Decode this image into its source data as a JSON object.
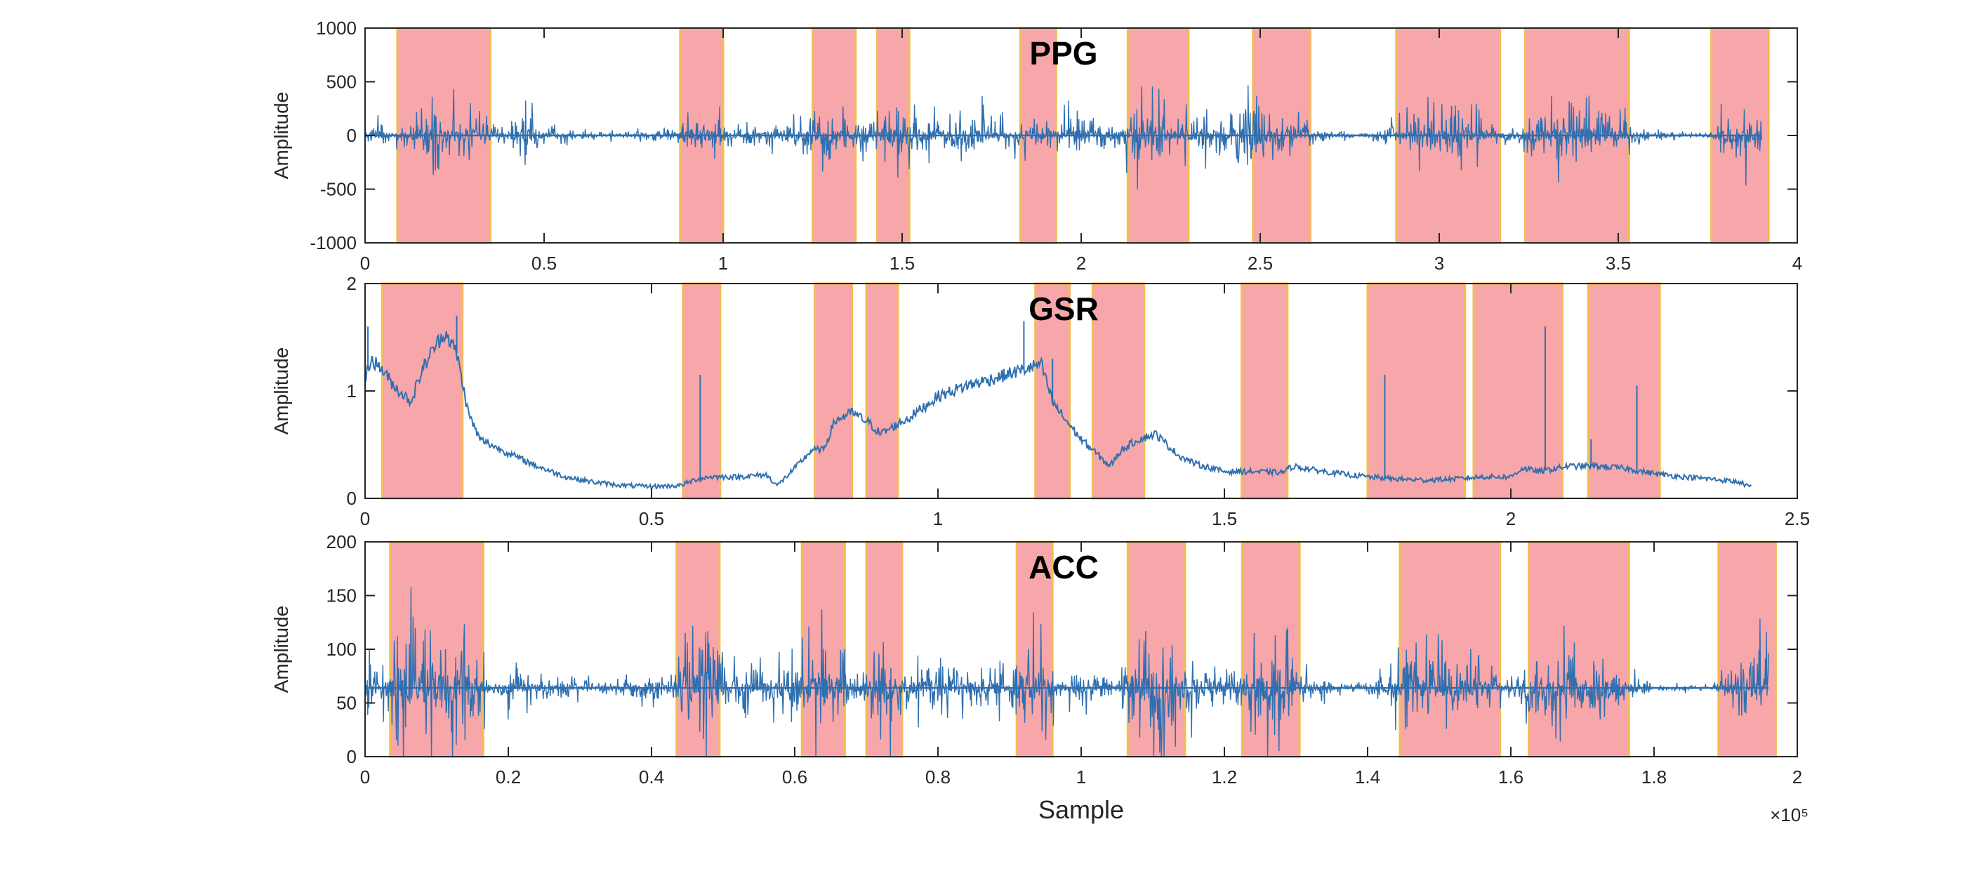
{
  "chart_data": [
    {
      "type": "line",
      "title": "PPG",
      "ylabel": "Amplitude",
      "xlabel": "",
      "xlim": [
        0,
        4
      ],
      "ylim": [
        -1000,
        1000
      ],
      "x_ticks": [
        "0",
        "0.5",
        "1",
        "1.5",
        "2",
        "2.5",
        "3",
        "3.5",
        "4"
      ],
      "y_ticks": [
        "1000",
        "500",
        "0",
        "-500",
        "-1000"
      ],
      "series": [
        {
          "baseline": 0,
          "envelope": [
            [
              0,
              60
            ],
            [
              0.05,
              250
            ],
            [
              0.1,
              120
            ],
            [
              0.15,
              380
            ],
            [
              0.2,
              500
            ],
            [
              0.25,
              450
            ],
            [
              0.3,
              520
            ],
            [
              0.35,
              200
            ],
            [
              0.4,
              250
            ],
            [
              0.45,
              420
            ],
            [
              0.5,
              150
            ],
            [
              0.55,
              100
            ],
            [
              0.6,
              90
            ],
            [
              0.7,
              60
            ],
            [
              0.8,
              100
            ],
            [
              0.85,
              120
            ],
            [
              0.9,
              300
            ],
            [
              0.95,
              350
            ],
            [
              1.0,
              250
            ],
            [
              1.05,
              150
            ],
            [
              1.1,
              200
            ],
            [
              1.2,
              250
            ],
            [
              1.25,
              300
            ],
            [
              1.3,
              380
            ],
            [
              1.35,
              250
            ],
            [
              1.4,
              250
            ],
            [
              1.45,
              600
            ],
            [
              1.5,
              500
            ],
            [
              1.55,
              400
            ],
            [
              1.6,
              300
            ],
            [
              1.7,
              450
            ],
            [
              1.75,
              350
            ],
            [
              1.8,
              250
            ],
            [
              1.85,
              350
            ],
            [
              1.9,
              250
            ],
            [
              2.0,
              400
            ],
            [
              2.1,
              250
            ],
            [
              2.15,
              500
            ],
            [
              2.2,
              600
            ],
            [
              2.25,
              450
            ],
            [
              2.3,
              350
            ],
            [
              2.4,
              300
            ],
            [
              2.45,
              650
            ],
            [
              2.5,
              550
            ],
            [
              2.55,
              450
            ],
            [
              2.6,
              350
            ],
            [
              2.65,
              150
            ],
            [
              2.8,
              30
            ],
            [
              2.9,
              300
            ],
            [
              3.0,
              400
            ],
            [
              3.05,
              500
            ],
            [
              3.1,
              380
            ],
            [
              3.2,
              150
            ],
            [
              3.25,
              400
            ],
            [
              3.3,
              480
            ],
            [
              3.4,
              500
            ],
            [
              3.5,
              350
            ],
            [
              3.6,
              80
            ],
            [
              3.75,
              40
            ],
            [
              3.8,
              400
            ],
            [
              3.85,
              500
            ],
            [
              3.9,
              350
            ]
          ]
        }
      ],
      "regions": [
        [
          0.09,
          0.35
        ],
        [
          0.88,
          1.0
        ],
        [
          1.25,
          1.37
        ],
        [
          1.43,
          1.52
        ],
        [
          1.83,
          1.93
        ],
        [
          2.13,
          2.3
        ],
        [
          2.48,
          2.64
        ],
        [
          2.88,
          3.17
        ],
        [
          3.24,
          3.53
        ],
        [
          3.76,
          3.92
        ]
      ]
    },
    {
      "type": "line",
      "title": "GSR",
      "ylabel": "Amplitude",
      "xlabel": "",
      "xlim": [
        0,
        2.5
      ],
      "ylim": [
        0,
        2
      ],
      "x_ticks": [
        "0",
        "0.5",
        "1",
        "1.5",
        "2",
        "2.5"
      ],
      "y_ticks": [
        "2",
        "1",
        "0"
      ],
      "series": [
        {
          "points": [
            [
              0,
              1.1
            ],
            [
              0.01,
              1.3
            ],
            [
              0.03,
              1.2
            ],
            [
              0.05,
              1.05
            ],
            [
              0.08,
              0.9
            ],
            [
              0.1,
              1.2
            ],
            [
              0.12,
              1.4
            ],
            [
              0.14,
              1.55
            ],
            [
              0.16,
              1.35
            ],
            [
              0.18,
              0.8
            ],
            [
              0.2,
              0.55
            ],
            [
              0.25,
              0.42
            ],
            [
              0.3,
              0.3
            ],
            [
              0.35,
              0.2
            ],
            [
              0.4,
              0.15
            ],
            [
              0.45,
              0.12
            ],
            [
              0.5,
              0.11
            ],
            [
              0.55,
              0.12
            ],
            [
              0.58,
              0.18
            ],
            [
              0.6,
              0.2
            ],
            [
              0.65,
              0.2
            ],
            [
              0.7,
              0.22
            ],
            [
              0.72,
              0.12
            ],
            [
              0.75,
              0.28
            ],
            [
              0.78,
              0.45
            ],
            [
              0.8,
              0.45
            ],
            [
              0.82,
              0.72
            ],
            [
              0.85,
              0.8
            ],
            [
              0.88,
              0.7
            ],
            [
              0.9,
              0.6
            ],
            [
              0.95,
              0.75
            ],
            [
              1.0,
              0.95
            ],
            [
              1.05,
              1.05
            ],
            [
              1.1,
              1.12
            ],
            [
              1.15,
              1.2
            ],
            [
              1.18,
              1.25
            ],
            [
              1.2,
              0.9
            ],
            [
              1.22,
              0.75
            ],
            [
              1.25,
              0.55
            ],
            [
              1.28,
              0.4
            ],
            [
              1.3,
              0.3
            ],
            [
              1.32,
              0.45
            ],
            [
              1.35,
              0.55
            ],
            [
              1.38,
              0.6
            ],
            [
              1.42,
              0.4
            ],
            [
              1.45,
              0.32
            ],
            [
              1.5,
              0.25
            ],
            [
              1.55,
              0.25
            ],
            [
              1.6,
              0.24
            ],
            [
              1.62,
              0.3
            ],
            [
              1.65,
              0.27
            ],
            [
              1.7,
              0.23
            ],
            [
              1.75,
              0.2
            ],
            [
              1.8,
              0.18
            ],
            [
              1.85,
              0.17
            ],
            [
              1.9,
              0.18
            ],
            [
              1.95,
              0.2
            ],
            [
              2.0,
              0.2
            ],
            [
              2.02,
              0.28
            ],
            [
              2.05,
              0.25
            ],
            [
              2.1,
              0.3
            ],
            [
              2.15,
              0.3
            ],
            [
              2.2,
              0.28
            ],
            [
              2.25,
              0.23
            ],
            [
              2.3,
              0.2
            ],
            [
              2.35,
              0.18
            ],
            [
              2.4,
              0.15
            ],
            [
              2.42,
              0.1
            ]
          ],
          "spikes": [
            [
              0.005,
              1.6
            ],
            [
              0.16,
              1.7
            ],
            [
              0.585,
              1.15
            ],
            [
              1.15,
              1.65
            ],
            [
              1.2,
              1.3
            ],
            [
              1.78,
              1.15
            ],
            [
              2.06,
              1.6
            ],
            [
              2.22,
              1.05
            ],
            [
              2.14,
              0.55
            ]
          ]
        }
      ],
      "regions": [
        [
          0.03,
          0.17
        ],
        [
          0.555,
          0.62
        ],
        [
          0.785,
          0.85
        ],
        [
          0.875,
          0.93
        ],
        [
          1.17,
          1.23
        ],
        [
          1.27,
          1.36
        ],
        [
          1.53,
          1.61
        ],
        [
          1.75,
          1.92
        ],
        [
          1.935,
          2.09
        ],
        [
          2.135,
          2.26
        ]
      ]
    },
    {
      "type": "line",
      "title": "ACC",
      "ylabel": "Amplitude",
      "xlabel": "Sample",
      "x_exponent": "×10⁵",
      "xlim": [
        0,
        2
      ],
      "ylim": [
        0,
        200
      ],
      "x_ticks": [
        "0",
        "0.2",
        "0.4",
        "0.6",
        "0.8",
        "1",
        "1.2",
        "1.4",
        "1.6",
        "1.8",
        "2"
      ],
      "y_ticks": [
        "200",
        "150",
        "100",
        "50",
        "0"
      ],
      "series": [
        {
          "baseline": 64,
          "envelope": [
            [
              0,
              20
            ],
            [
              0.005,
              90
            ],
            [
              0.01,
              30
            ],
            [
              0.04,
              60
            ],
            [
              0.06,
              100
            ],
            [
              0.08,
              90
            ],
            [
              0.1,
              80
            ],
            [
              0.12,
              85
            ],
            [
              0.14,
              70
            ],
            [
              0.16,
              60
            ],
            [
              0.17,
              30
            ],
            [
              0.2,
              30
            ],
            [
              0.25,
              20
            ],
            [
              0.3,
              15
            ],
            [
              0.35,
              8
            ],
            [
              0.4,
              25
            ],
            [
              0.43,
              20
            ],
            [
              0.46,
              80
            ],
            [
              0.48,
              110
            ],
            [
              0.5,
              50
            ],
            [
              0.55,
              30
            ],
            [
              0.58,
              35
            ],
            [
              0.6,
              40
            ],
            [
              0.62,
              60
            ],
            [
              0.64,
              80
            ],
            [
              0.66,
              60
            ],
            [
              0.68,
              20
            ],
            [
              0.7,
              50
            ],
            [
              0.72,
              100
            ],
            [
              0.74,
              60
            ],
            [
              0.76,
              40
            ],
            [
              0.8,
              40
            ],
            [
              0.85,
              40
            ],
            [
              0.9,
              35
            ],
            [
              0.93,
              85
            ],
            [
              0.95,
              70
            ],
            [
              0.97,
              20
            ],
            [
              1.0,
              30
            ],
            [
              1.05,
              15
            ],
            [
              1.07,
              80
            ],
            [
              1.09,
              110
            ],
            [
              1.12,
              90
            ],
            [
              1.15,
              60
            ],
            [
              1.2,
              20
            ],
            [
              1.23,
              50
            ],
            [
              1.25,
              70
            ],
            [
              1.28,
              75
            ],
            [
              1.3,
              40
            ],
            [
              1.35,
              10
            ],
            [
              1.4,
              5
            ],
            [
              1.45,
              50
            ],
            [
              1.5,
              55
            ],
            [
              1.55,
              45
            ],
            [
              1.58,
              30
            ],
            [
              1.6,
              10
            ],
            [
              1.62,
              40
            ],
            [
              1.65,
              60
            ],
            [
              1.68,
              70
            ],
            [
              1.72,
              50
            ],
            [
              1.76,
              30
            ],
            [
              1.8,
              5
            ],
            [
              1.88,
              5
            ],
            [
              1.92,
              50
            ],
            [
              1.94,
              90
            ],
            [
              1.96,
              50
            ]
          ]
        }
      ],
      "regions": [
        [
          0.035,
          0.165
        ],
        [
          0.435,
          0.495
        ],
        [
          0.61,
          0.67
        ],
        [
          0.7,
          0.75
        ],
        [
          0.91,
          0.96
        ],
        [
          1.065,
          1.145
        ],
        [
          1.225,
          1.305
        ],
        [
          1.445,
          1.585
        ],
        [
          1.625,
          1.765
        ],
        [
          1.89,
          1.97
        ]
      ]
    }
  ]
}
